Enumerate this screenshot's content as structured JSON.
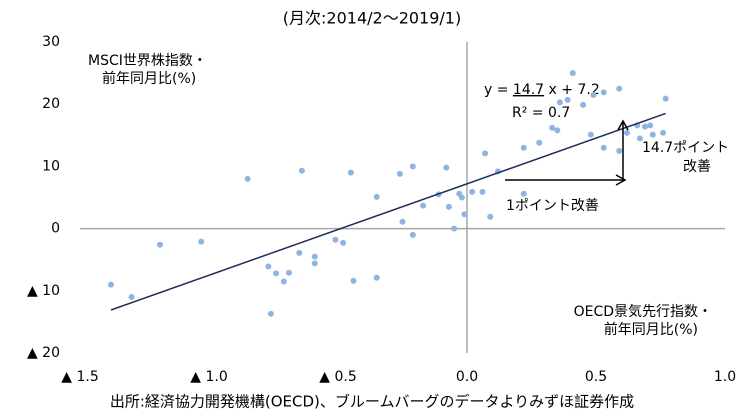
{
  "chart_data": {
    "type": "scatter",
    "subtitle": "(月次:2014/2～2019/1)",
    "y_label": [
      "MSCI世界株指数・",
      "前年同月比(%)"
    ],
    "x_label": [
      "OECD景気先行指数・",
      "前年同月比(%)"
    ],
    "source": "出所:経済協力開発機構(OECD)、ブルームバーグのデータよりみずほ証券作成",
    "color": "#8fb4e3",
    "line_color": "#1f2d5c",
    "xlim": [
      -1.5,
      1.0
    ],
    "ylim": [
      -20,
      30
    ],
    "xticks": [
      {
        "value": -1.5,
        "label": "▲ 1.5"
      },
      {
        "value": -1.0,
        "label": "▲ 1.0"
      },
      {
        "value": -0.5,
        "label": "▲ 0.5"
      },
      {
        "value": 0,
        "label": "0.0"
      },
      0.5,
      {
        "value": 1.0,
        "label": "1.0"
      }
    ],
    "yticks": [
      {
        "value": -20,
        "label": "▲ 20"
      },
      {
        "value": -10,
        "label": "▲ 10"
      },
      0,
      10,
      20,
      30
    ],
    "zero_lines": true,
    "x": [
      -1.38,
      -1.3,
      -1.19,
      -1.03,
      -0.85,
      -0.64,
      -0.45,
      -0.77,
      -0.74,
      -0.71,
      -0.69,
      -0.76,
      -0.65,
      -0.59,
      -0.59,
      -0.51,
      -0.48,
      -0.44,
      -0.35,
      -0.35,
      -0.21,
      -0.26,
      -0.21,
      -0.25,
      -0.17,
      -0.11,
      -0.08,
      -0.07,
      -0.05,
      -0.03,
      -0.01,
      -0.02,
      0.02,
      0.06,
      0.09,
      0.07,
      0.12,
      0.22,
      0.22,
      0.28,
      0.33,
      0.35,
      0.36,
      0.39,
      0.41,
      0.45,
      0.49,
      0.48,
      0.53,
      0.59,
      0.53,
      0.59,
      0.62,
      0.66,
      0.67,
      0.69,
      0.72,
      0.71,
      0.76,
      0.77
    ],
    "values": [
      -9.0,
      -11.0,
      -2.6,
      -2.1,
      8.0,
      9.3,
      9.0,
      -6.1,
      -7.2,
      -8.5,
      -7.1,
      -13.7,
      -3.9,
      -5.6,
      -4.5,
      -1.8,
      -2.3,
      -8.4,
      -7.9,
      5.1,
      -1.0,
      8.8,
      10.0,
      1.1,
      3.7,
      5.5,
      9.8,
      3.5,
      0.0,
      5.6,
      2.3,
      5.0,
      5.9,
      5.9,
      1.9,
      12.1,
      9.2,
      5.6,
      13.0,
      13.8,
      16.2,
      15.8,
      20.3,
      20.7,
      25.0,
      19.9,
      21.5,
      15.1,
      21.9,
      22.5,
      13.0,
      12.5,
      15.4,
      16.6,
      14.5,
      16.4,
      15.1,
      16.6,
      15.4,
      20.9
    ],
    "regression": {
      "prefix": "y = ",
      "slope": 14.7,
      "mid": " x + ",
      "intercept": 7.2,
      "r2": "R² = 0.7"
    },
    "annotations": [
      [
        "14.7ポイント",
        "改善"
      ],
      [
        "1ポイント改善"
      ]
    ]
  }
}
